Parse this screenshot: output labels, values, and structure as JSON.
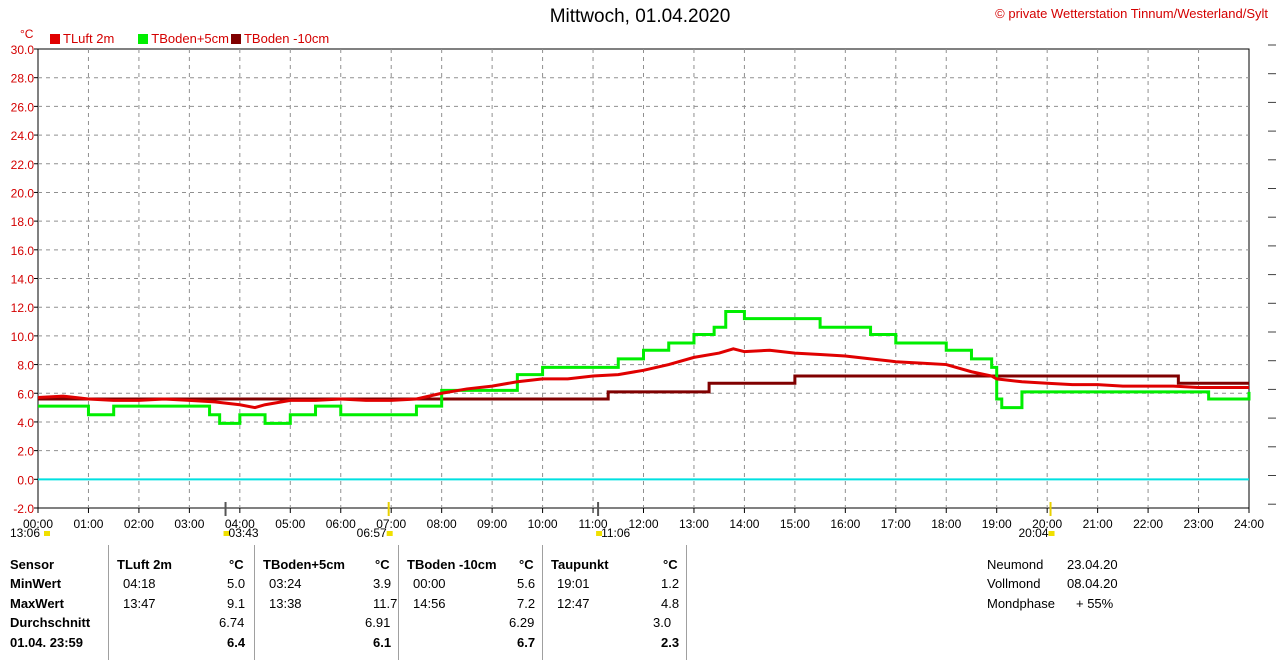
{
  "title": "Mittwoch, 01.04.2020",
  "copyright": "© private Wetterstation Tinnum/Westerland/Sylt",
  "chart_data": {
    "type": "line",
    "ylabel": "°C",
    "ylim": [
      -2,
      30
    ],
    "yticks": [
      "30.0",
      "28.0",
      "26.0",
      "24.0",
      "22.0",
      "20.0",
      "18.0",
      "16.0",
      "14.0",
      "12.0",
      "10.0",
      "8.0",
      "6.0",
      "4.0",
      "2.0",
      "0.0",
      "-2.0"
    ],
    "xlim": [
      0,
      24
    ],
    "xticks": [
      "00:00",
      "01:00",
      "02:00",
      "03:00",
      "04:00",
      "05:00",
      "06:00",
      "07:00",
      "08:00",
      "09:00",
      "10:00",
      "11:00",
      "12:00",
      "13:00",
      "14:00",
      "15:00",
      "16:00",
      "17:00",
      "18:00",
      "19:00",
      "20:00",
      "21:00",
      "22:00",
      "23:00",
      "24:00"
    ],
    "grid": true,
    "legend_position": "top-left",
    "series": [
      {
        "name": "TLuft 2m",
        "color": "#e00000",
        "x": [
          0,
          0.5,
          1,
          1.5,
          2,
          2.5,
          3,
          3.5,
          4,
          4.3,
          4.5,
          5,
          5.5,
          6,
          6.5,
          7,
          7.5,
          8,
          8.5,
          9,
          9.5,
          10,
          10.5,
          11,
          11.5,
          12,
          12.5,
          13,
          13.5,
          13.78,
          14,
          14.5,
          15,
          15.5,
          16,
          16.5,
          17,
          17.5,
          18,
          18.5,
          18.9,
          19,
          19.5,
          20,
          20.5,
          21,
          21.5,
          22,
          22.5,
          23,
          23.5,
          24
        ],
        "y": [
          5.7,
          5.8,
          5.6,
          5.5,
          5.5,
          5.6,
          5.5,
          5.4,
          5.2,
          5.0,
          5.2,
          5.5,
          5.5,
          5.6,
          5.5,
          5.5,
          5.6,
          6.0,
          6.3,
          6.5,
          6.8,
          7.0,
          7.0,
          7.2,
          7.3,
          7.6,
          8.0,
          8.5,
          8.8,
          9.1,
          8.9,
          9.0,
          8.8,
          8.7,
          8.6,
          8.4,
          8.2,
          8.1,
          8.0,
          7.5,
          7.2,
          7.0,
          6.8,
          6.7,
          6.6,
          6.6,
          6.5,
          6.5,
          6.5,
          6.4,
          6.4,
          6.4
        ]
      },
      {
        "name": "TBoden+5cm",
        "color": "#00ee00",
        "x": [
          0,
          0.5,
          1,
          1.5,
          2,
          2.5,
          3,
          3.4,
          3.6,
          4,
          4.5,
          5,
          5.5,
          6,
          6.5,
          7,
          7.5,
          8,
          8.5,
          9,
          9.5,
          10,
          10.5,
          11,
          11.5,
          12,
          12.5,
          13,
          13.4,
          13.63,
          14,
          14.5,
          15,
          15.5,
          16,
          16.5,
          17,
          17.5,
          18,
          18.5,
          18.9,
          19.0,
          19.1,
          19.5,
          20,
          21,
          22,
          23,
          23.2,
          24
        ],
        "y": [
          5.1,
          5.1,
          4.5,
          5.1,
          5.1,
          5.1,
          5.1,
          4.5,
          3.9,
          4.5,
          3.9,
          4.5,
          5.1,
          4.5,
          4.5,
          4.5,
          5.1,
          6.2,
          6.2,
          6.2,
          7.3,
          7.8,
          7.8,
          7.8,
          8.4,
          9.0,
          9.5,
          10.1,
          10.6,
          11.7,
          11.2,
          11.2,
          11.2,
          10.6,
          10.6,
          10.1,
          9.5,
          9.5,
          9.0,
          8.4,
          7.8,
          5.6,
          5.0,
          6.1,
          6.1,
          6.1,
          6.1,
          6.1,
          5.6,
          6.1
        ]
      },
      {
        "name": "TBoden -10cm",
        "color": "#800000",
        "x": [
          0,
          11.2,
          11.3,
          13.2,
          13.3,
          14.9,
          15.0,
          22.5,
          22.6,
          24
        ],
        "y": [
          5.6,
          5.6,
          6.1,
          6.1,
          6.7,
          6.7,
          7.2,
          7.2,
          6.7,
          6.7
        ]
      },
      {
        "name": "",
        "color": "#00e0e0",
        "x": [
          0,
          24
        ],
        "y": [
          0.0,
          0.0
        ]
      }
    ],
    "markers": [
      {
        "time": "13:06",
        "label": "13:06"
      },
      {
        "time": "03:43",
        "label": "03:43"
      },
      {
        "time": "06:57",
        "label": "06:57"
      },
      {
        "time": "11:06",
        "label": "11:06"
      },
      {
        "time": "20:04",
        "label": "20:04"
      }
    ]
  },
  "stats": {
    "header": {
      "sensor": "Sensor"
    },
    "rows": [
      "MinWert",
      "MaxWert",
      "Durchschnitt",
      "01.04. 23:59"
    ],
    "columns": [
      {
        "name": "TLuft 2m",
        "unit": "°C",
        "min_time": "04:18",
        "min": "5.0",
        "max_time": "13:47",
        "max": "9.1",
        "avg": "6.74",
        "current": "6.4"
      },
      {
        "name": "TBoden+5cm",
        "unit": "°C",
        "min_time": "03:24",
        "min": "3.9",
        "max_time": "13:38",
        "max": "11.7",
        "avg": "6.91",
        "current": "6.1"
      },
      {
        "name": "TBoden -10cm",
        "unit": "°C",
        "min_time": "00:00",
        "min": "5.6",
        "max_time": "14:56",
        "max": "7.2",
        "avg": "6.29",
        "current": "6.7"
      },
      {
        "name": "Taupunkt",
        "unit": "°C",
        "min_time": "19:01",
        "min": "1.2",
        "max_time": "12:47",
        "max": "4.8",
        "avg": "3.0",
        "current": "2.3"
      }
    ]
  },
  "moon": {
    "neumond_label": "Neumond",
    "neumond": "23.04.20",
    "vollmond_label": "Vollmond",
    "vollmond": "08.04.20",
    "phase_label": "Mondphase",
    "phase": "+ 55%"
  }
}
